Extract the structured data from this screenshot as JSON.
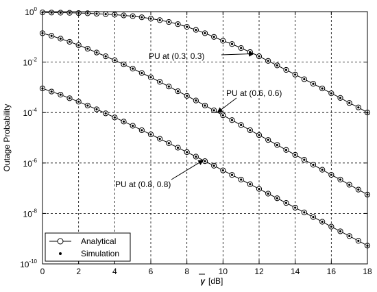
{
  "chart_data": {
    "type": "line",
    "xlabel_symbol": "γ",
    "xlabel_unit": "[dB]",
    "ylabel": "Outage Probability",
    "xlim": [
      0,
      18
    ],
    "ylim": [
      1e-10,
      1
    ],
    "yscale": "log",
    "grid": true,
    "legend_placement": "bottom-left",
    "x_ticks": [
      0,
      2,
      4,
      6,
      8,
      10,
      12,
      14,
      16,
      18
    ],
    "y_ticks": [
      {
        "value": 1,
        "base": "10",
        "exp": "0"
      },
      {
        "value": 0.01,
        "base": "10",
        "exp": "-2"
      },
      {
        "value": 0.0001,
        "base": "10",
        "exp": "-4"
      },
      {
        "value": 1e-06,
        "base": "10",
        "exp": "-6"
      },
      {
        "value": 1e-08,
        "base": "10",
        "exp": "-8"
      },
      {
        "value": 1e-10,
        "base": "10",
        "exp": "-10"
      }
    ],
    "legend": [
      {
        "label": "Analytical",
        "marker": "open-circle",
        "line": true
      },
      {
        "label": "Simulation",
        "marker": "dot",
        "line": false
      }
    ],
    "series": [
      {
        "annotation": "PU at (0.3, 0.3)",
        "x": [
          0,
          0.5,
          1,
          1.5,
          2,
          2.5,
          3,
          3.5,
          4,
          4.5,
          5,
          5.5,
          6,
          6.5,
          7,
          7.5,
          8,
          8.5,
          9,
          9.5,
          10,
          10.5,
          11,
          11.5,
          12,
          12.5,
          13,
          13.5,
          14,
          14.5,
          15,
          15.5,
          16,
          16.5,
          17,
          17.5,
          18
        ],
        "y": [
          0.93,
          0.92,
          0.91,
          0.9,
          0.88,
          0.86,
          0.83,
          0.8,
          0.76,
          0.71,
          0.66,
          0.6,
          0.53,
          0.46,
          0.39,
          0.32,
          0.25,
          0.19,
          0.14,
          0.1,
          0.07,
          0.052,
          0.036,
          0.025,
          0.017,
          0.0112,
          0.0074,
          0.0049,
          0.0032,
          0.0021,
          0.00138,
          0.0009,
          0.00058,
          0.00038,
          0.00024,
          0.00016,
          0.0001
        ]
      },
      {
        "annotation": "PU at (0.6, 0.6)",
        "x": [
          0,
          0.5,
          1,
          1.5,
          2,
          2.5,
          3,
          3.5,
          4,
          4.5,
          5,
          5.5,
          6,
          6.5,
          7,
          7.5,
          8,
          8.5,
          9,
          9.5,
          10,
          10.5,
          11,
          11.5,
          12,
          12.5,
          13,
          13.5,
          14,
          14.5,
          15,
          15.5,
          16,
          16.5,
          17,
          17.5,
          18
        ],
        "y": [
          0.14,
          0.11,
          0.085,
          0.064,
          0.047,
          0.034,
          0.024,
          0.017,
          0.0118,
          0.0081,
          0.0055,
          0.0037,
          0.0025,
          0.00165,
          0.00108,
          0.0007,
          0.00046,
          0.0003,
          0.00019,
          0.000122,
          7.8e-05,
          5e-05,
          3.2e-05,
          2e-05,
          1.28e-05,
          8.2e-06,
          5.2e-06,
          3.3e-06,
          2.1e-06,
          1.34e-06,
          8.5e-07,
          5.4e-07,
          3.4e-07,
          2.2e-07,
          1.38e-07,
          8.8e-08,
          5.6e-08
        ]
      },
      {
        "annotation": "PU at (0.8, 0.8)",
        "x": [
          0,
          0.5,
          1,
          1.5,
          2,
          2.5,
          3,
          3.5,
          4,
          4.5,
          5,
          5.5,
          6,
          6.5,
          7,
          7.5,
          8,
          8.5,
          9,
          9.5,
          10,
          10.5,
          11,
          11.5,
          12,
          12.5,
          13,
          13.5,
          14,
          14.5,
          15,
          15.5,
          16,
          16.5,
          17,
          17.5,
          18
        ],
        "y": [
          0.0009,
          0.00068,
          0.00051,
          0.00037,
          0.00027,
          0.00019,
          0.000134,
          9.3e-05,
          6.4e-05,
          4.4e-05,
          3e-05,
          2e-05,
          1.36e-05,
          9.1e-06,
          6.1e-06,
          4.05e-06,
          2.7e-06,
          1.79e-06,
          1.18e-06,
          7.8e-07,
          5.1e-07,
          3.35e-07,
          2.2e-07,
          1.44e-07,
          9.4e-08,
          6.1e-08,
          4e-08,
          2.6e-08,
          1.7e-08,
          1.1e-08,
          7.2e-09,
          4.7e-09,
          3e-09,
          1.96e-09,
          1.27e-09,
          8.2e-10,
          5.3e-10
        ]
      }
    ]
  }
}
